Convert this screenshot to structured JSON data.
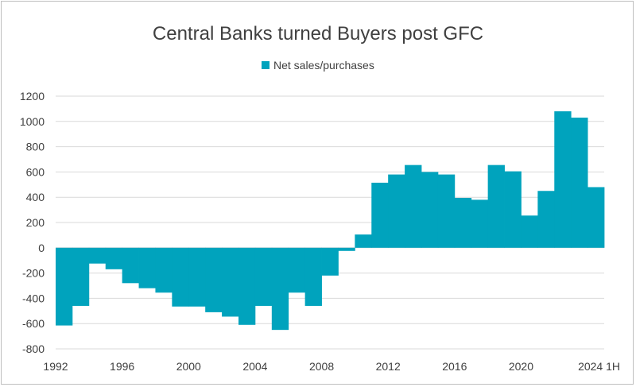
{
  "chart_data": {
    "type": "bar",
    "title": "Central Banks turned Buyers post GFC",
    "legend": {
      "label": "Net sales/purchases",
      "placement": "top"
    },
    "xlabel": "",
    "ylabel": "",
    "ylim": [
      -800,
      1200
    ],
    "yticks": [
      -800,
      -600,
      -400,
      -200,
      0,
      200,
      400,
      600,
      800,
      1000,
      1200
    ],
    "grid": true,
    "categories": [
      "1992",
      "1993",
      "1994",
      "1995",
      "1996",
      "1997",
      "1998",
      "1999",
      "2000",
      "2001",
      "2002",
      "2003",
      "2004",
      "2005",
      "2006",
      "2007",
      "2008",
      "2009",
      "2010",
      "2011",
      "2012",
      "2013",
      "2014",
      "2015",
      "2016",
      "2017",
      "2018",
      "2019",
      "2020",
      "2021",
      "2022",
      "2023",
      "2024 1H"
    ],
    "xtick_labels": [
      "1992",
      "1996",
      "2000",
      "2004",
      "2008",
      "2012",
      "2016",
      "2020",
      "2024 1H"
    ],
    "series": [
      {
        "name": "Net sales/purchases",
        "color": "#00A3BD",
        "values": [
          -615,
          -460,
          -125,
          -170,
          -280,
          -320,
          -355,
          -465,
          -465,
          -510,
          -545,
          -610,
          -460,
          -650,
          -355,
          -460,
          -220,
          -25,
          105,
          515,
          580,
          655,
          600,
          580,
          395,
          380,
          655,
          605,
          255,
          450,
          1080,
          1030,
          480
        ]
      }
    ]
  }
}
